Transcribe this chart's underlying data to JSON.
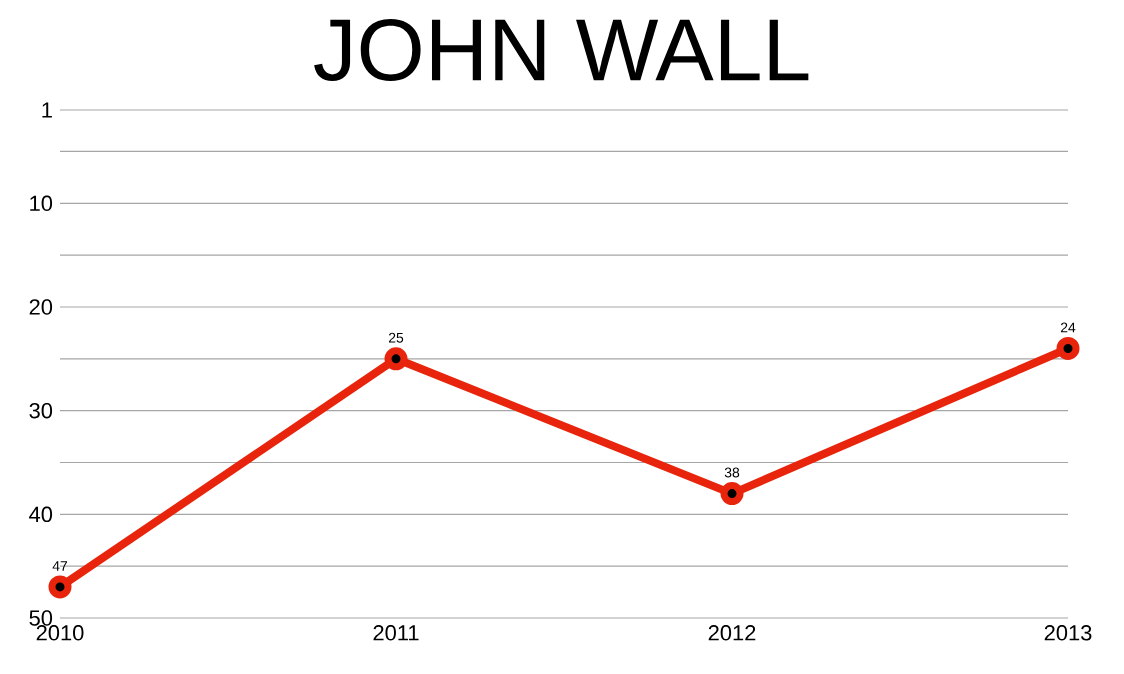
{
  "chart_data": {
    "type": "line",
    "title": "JOHN WALL",
    "x": [
      2010,
      2011,
      2012,
      2013
    ],
    "series": [
      {
        "color": "#e8250c",
        "values": [
          47,
          25,
          38,
          24
        ]
      }
    ],
    "xlim": [
      2010,
      2013
    ],
    "xticks": [
      2010,
      2011,
      2012,
      2013
    ],
    "ylim": [
      50,
      1
    ],
    "yticks": [
      1,
      {
        "value": 5,
        "label": null
      },
      10,
      {
        "value": 15,
        "label": null
      },
      20,
      {
        "value": 25,
        "label": null
      },
      30,
      {
        "value": 35,
        "label": null
      },
      40,
      {
        "value": 45,
        "label": null
      },
      50
    ],
    "grid": "y",
    "marker": "circle",
    "line_style": "solid",
    "data_labels": true
  }
}
